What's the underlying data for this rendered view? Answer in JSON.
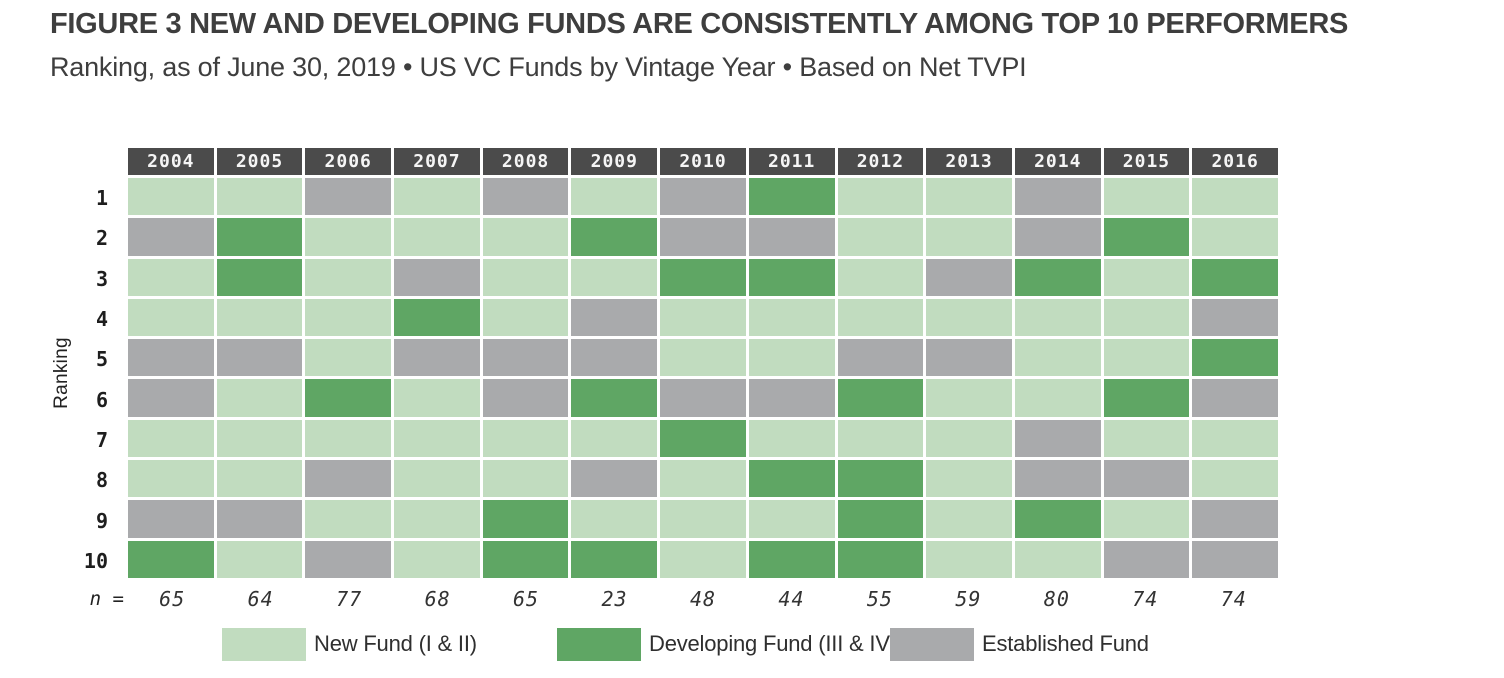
{
  "header": {
    "title": "FIGURE 3 NEW AND DEVELOPING FUNDS ARE CONSISTENTLY AMONG TOP 10 PERFORMERS",
    "subtitle": "Ranking, as of June 30, 2019 • US VC Funds by Vintage Year • Based on Net TVPI"
  },
  "chart_data": {
    "type": "heatmap",
    "title": "FIGURE 3 NEW AND DEVELOPING FUNDS ARE CONSISTENTLY AMONG TOP 10 PERFORMERS",
    "subtitle": "Ranking, as of June 30, 2019 • US VC Funds by Vintage Year • Based on Net TVPI",
    "ylabel": "Ranking",
    "x_categories": [
      "2004",
      "2005",
      "2006",
      "2007",
      "2008",
      "2009",
      "2010",
      "2011",
      "2012",
      "2013",
      "2014",
      "2015",
      "2016"
    ],
    "y_categories": [
      "1",
      "2",
      "3",
      "4",
      "5",
      "6",
      "7",
      "8",
      "9",
      "10"
    ],
    "matrix": [
      [
        "new",
        "new",
        "est",
        "new",
        "est",
        "new",
        "est",
        "dev",
        "new",
        "new",
        "est",
        "new",
        "new"
      ],
      [
        "est",
        "dev",
        "new",
        "new",
        "new",
        "dev",
        "est",
        "est",
        "new",
        "new",
        "est",
        "dev",
        "new"
      ],
      [
        "new",
        "dev",
        "new",
        "est",
        "new",
        "new",
        "dev",
        "dev",
        "new",
        "est",
        "dev",
        "new",
        "dev"
      ],
      [
        "new",
        "new",
        "new",
        "dev",
        "new",
        "est",
        "new",
        "new",
        "new",
        "new",
        "new",
        "new",
        "est"
      ],
      [
        "est",
        "est",
        "new",
        "est",
        "est",
        "est",
        "new",
        "new",
        "est",
        "est",
        "new",
        "new",
        "dev"
      ],
      [
        "est",
        "new",
        "dev",
        "new",
        "est",
        "dev",
        "est",
        "est",
        "dev",
        "new",
        "new",
        "dev",
        "est"
      ],
      [
        "new",
        "new",
        "new",
        "new",
        "new",
        "new",
        "dev",
        "new",
        "new",
        "new",
        "est",
        "new",
        "new"
      ],
      [
        "new",
        "new",
        "est",
        "new",
        "new",
        "est",
        "new",
        "dev",
        "dev",
        "new",
        "est",
        "est",
        "new"
      ],
      [
        "est",
        "est",
        "new",
        "new",
        "dev",
        "new",
        "new",
        "new",
        "dev",
        "new",
        "dev",
        "new",
        "est"
      ],
      [
        "dev",
        "new",
        "est",
        "new",
        "dev",
        "dev",
        "new",
        "dev",
        "dev",
        "new",
        "new",
        "est",
        "est"
      ]
    ],
    "n_label": "n =",
    "n_values": [
      "65",
      "64",
      "77",
      "68",
      "65",
      "23",
      "48",
      "44",
      "55",
      "59",
      "80",
      "74",
      "74"
    ],
    "legend": [
      {
        "key": "new",
        "label": "New Fund (I & II)",
        "color": "#c1dcbf"
      },
      {
        "key": "dev",
        "label": "Developing Fund (III & IV)",
        "color": "#5fa664"
      },
      {
        "key": "est",
        "label": "Established Fund",
        "color": "#a9aaac"
      }
    ],
    "colors": {
      "new": "#c1dcbf",
      "dev": "#5fa664",
      "est": "#a9aaac",
      "header_bg": "#4b4b4b",
      "header_text": "#f5f5f5"
    },
    "layout": {
      "grid": "on-white-gaps",
      "legend_position": "bottom"
    }
  }
}
